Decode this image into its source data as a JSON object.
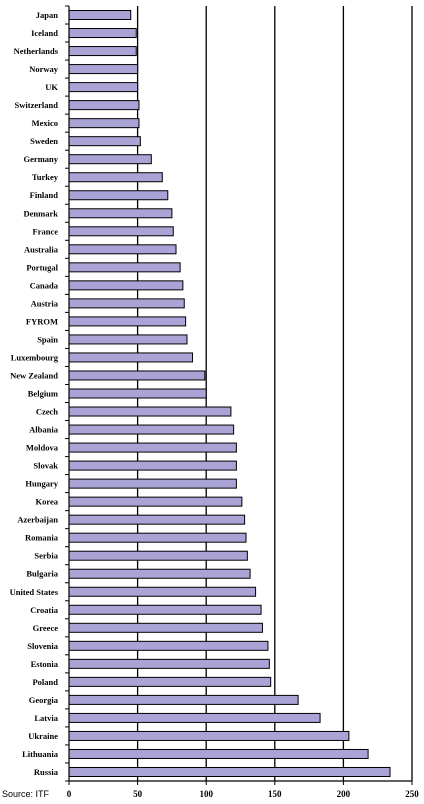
{
  "source_note": "Source: ITF",
  "chart_data": {
    "type": "bar",
    "orientation": "horizontal",
    "title": "",
    "xlabel": "",
    "ylabel": "",
    "xlim": [
      0,
      250
    ],
    "x_ticks": [
      0,
      50,
      100,
      150,
      200,
      250
    ],
    "grid": "vertical",
    "bar_color": "#aaa3d6",
    "bar_outline": "#000000",
    "categories": [
      "Japan",
      "Iceland",
      "Netherlands",
      "Norway",
      "UK",
      "Switzerland",
      "Mexico",
      "Sweden",
      "Germany",
      "Turkey",
      "Finland",
      "Denmark",
      "France",
      "Australia",
      "Portugal",
      "Canada",
      "Austria",
      "FYROM",
      "Spain",
      "Luxembourg",
      "New Zealand",
      "Belgium",
      "Czech",
      "Albania",
      "Moldova",
      "Slovak",
      "Hungary",
      "Korea",
      "Azerbaijan",
      "Romania",
      "Serbia",
      "Bulgaria",
      "United States",
      "Croatia",
      "Greece",
      "Slovenia",
      "Estonia",
      "Poland",
      "Georgia",
      "Latvia",
      "Ukraine",
      "Lithuania",
      "Russia"
    ],
    "values": [
      45,
      49,
      49,
      50,
      50,
      51,
      51,
      52,
      60,
      68,
      72,
      75,
      76,
      78,
      81,
      83,
      84,
      85,
      86,
      90,
      99,
      100,
      118,
      120,
      122,
      122,
      122,
      126,
      128,
      129,
      130,
      132,
      136,
      140,
      141,
      145,
      146,
      147,
      167,
      183,
      204,
      218,
      234
    ]
  }
}
